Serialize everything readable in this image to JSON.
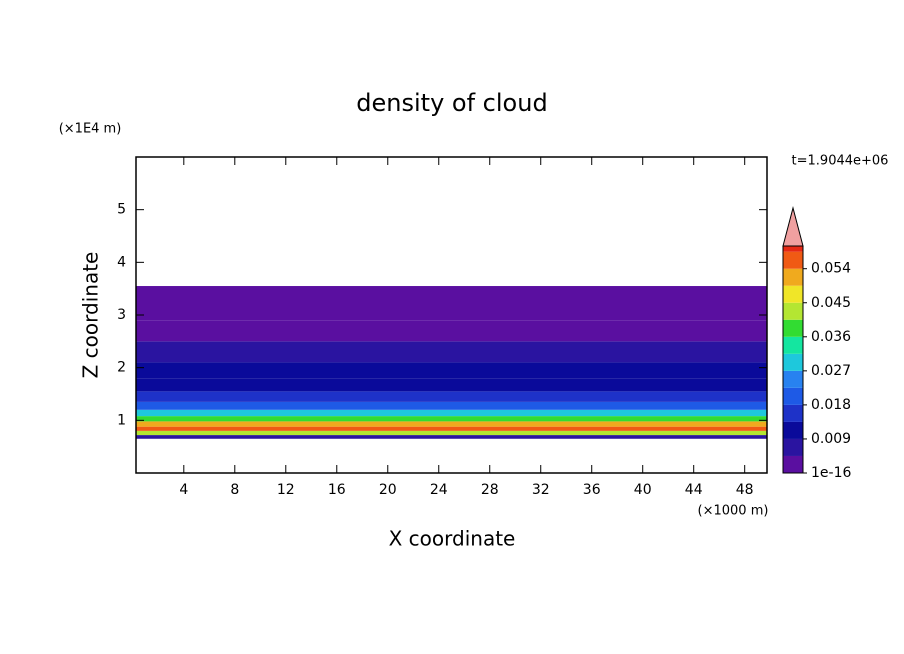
{
  "chart_data": {
    "type": "contour",
    "title": "density of cloud",
    "xlabel": "X coordinate",
    "ylabel": "Z coordinate",
    "x_unit": "(×1000 m)",
    "y_unit": "(×1E4 m)",
    "time_label": "t=1.9044e+06",
    "xlim": [
      0.25,
      49.75
    ],
    "ylim": [
      0,
      6
    ],
    "xticks": [
      4,
      8,
      12,
      16,
      20,
      24,
      28,
      32,
      36,
      40,
      44,
      48
    ],
    "yticks": [
      1,
      2,
      3,
      4,
      5
    ],
    "profile": {
      "z_edges": [
        0.65,
        0.72,
        0.8,
        0.88,
        0.98,
        1.08,
        1.2,
        1.35,
        1.55,
        1.8,
        2.1,
        2.5,
        2.9,
        3.55
      ],
      "values": [
        0.007,
        0.042,
        0.056,
        0.05,
        0.038,
        0.028,
        0.02,
        0.016,
        0.013,
        0.01,
        0.006,
        0.004,
        0.002
      ]
    },
    "colorbar": {
      "lim": [
        0,
        0.06
      ],
      "levels": [
        0,
        0.0045,
        0.009,
        0.0135,
        0.018,
        0.0225,
        0.027,
        0.0315,
        0.036,
        0.0405,
        0.045,
        0.0495,
        0.054,
        0.0585
      ],
      "colors": [
        "#5a0fa0",
        "#2a14a0",
        "#0a0a9a",
        "#1e32c8",
        "#1e5ae6",
        "#2882f0",
        "#1ec8dc",
        "#14e6a0",
        "#32dc32",
        "#b4e632",
        "#f0e628",
        "#f0aa1e",
        "#f05a14",
        "#e62814"
      ],
      "over_color": "#f0a0a0",
      "ticks": [
        {
          "value": 1e-16,
          "label": "1e-16"
        },
        0.009,
        0.018,
        0.027,
        0.036,
        0.045,
        0.054
      ]
    }
  }
}
